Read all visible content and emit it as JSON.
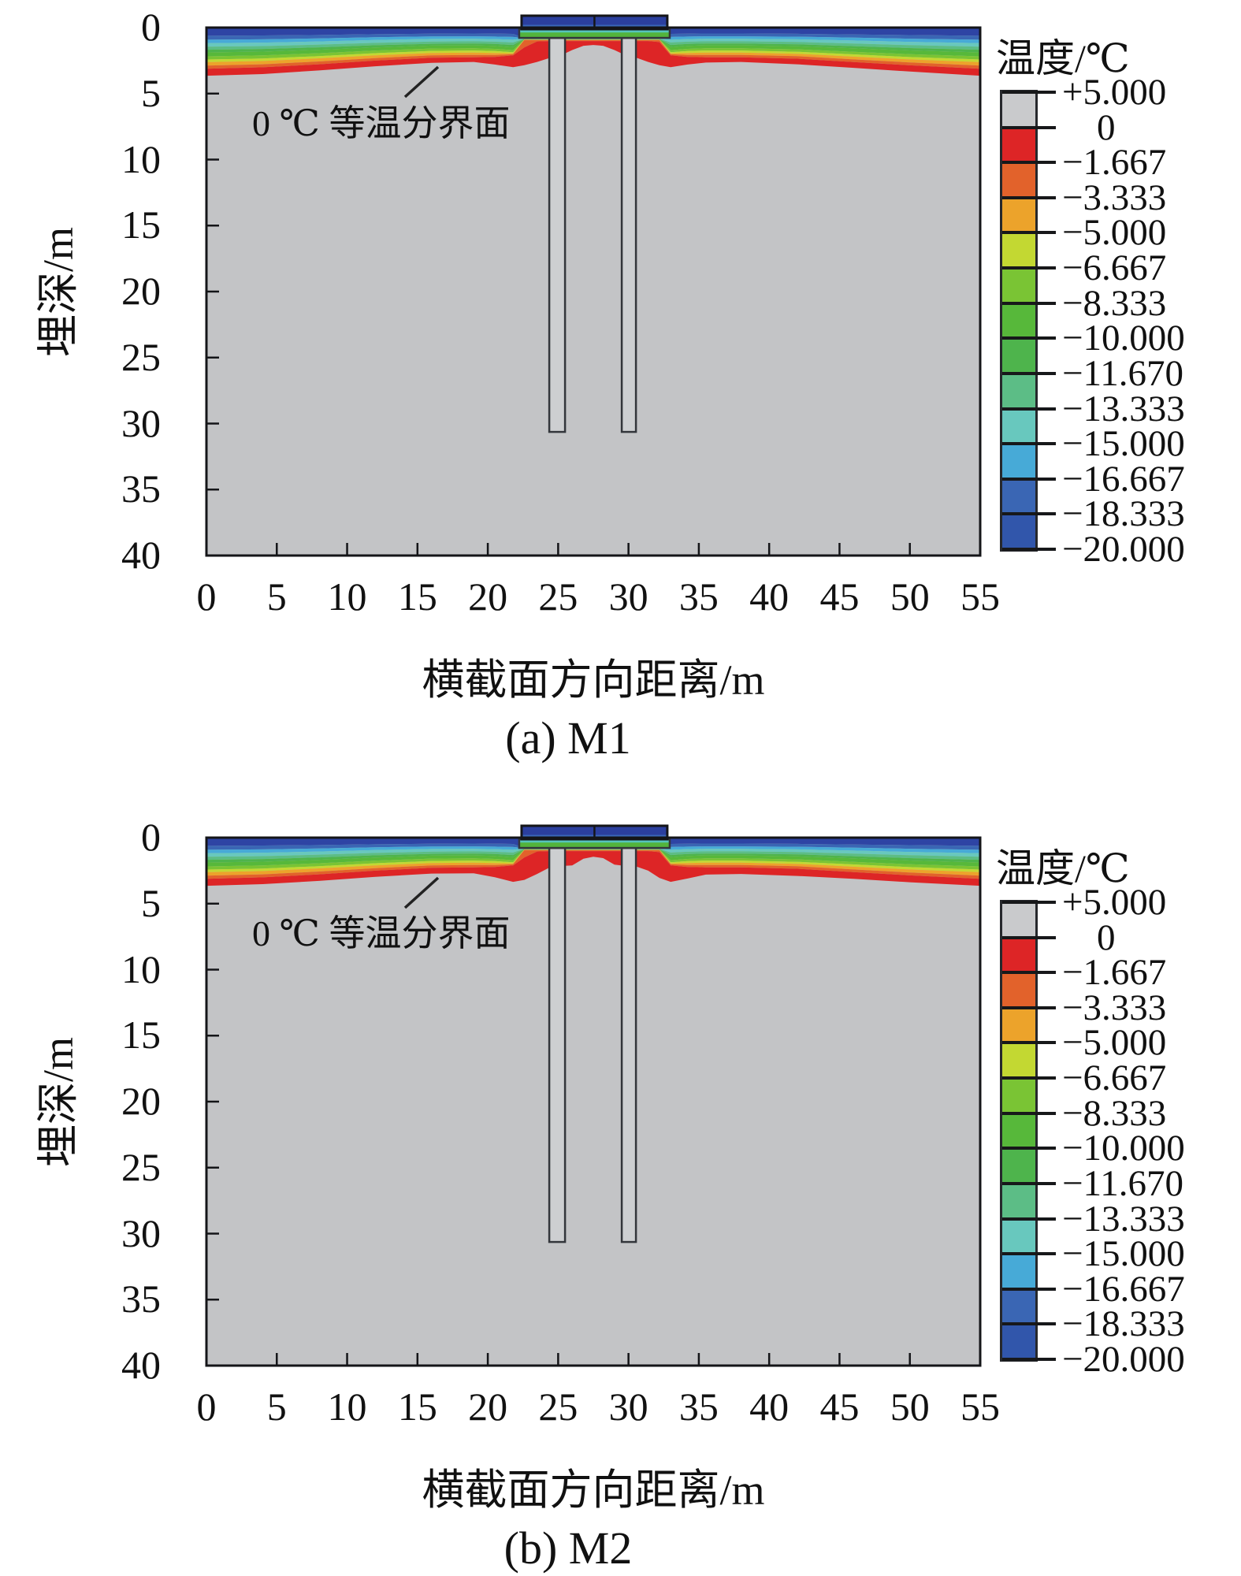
{
  "page": {
    "background": "#ffffff"
  },
  "axes": {
    "x_title": "横截面方向距离/m",
    "y_title": "埋深/m",
    "x_ticks": [
      "0",
      "5",
      "10",
      "15",
      "20",
      "25",
      "30",
      "35",
      "40",
      "45",
      "50",
      "55"
    ],
    "y_ticks": [
      "0",
      "5",
      "10",
      "15",
      "20",
      "25",
      "30",
      "35",
      "40"
    ],
    "x_range": [
      0,
      55
    ],
    "y_range": [
      0,
      40
    ]
  },
  "legend": {
    "title": "温度/℃",
    "tick_labels": [
      "+5.000",
      "0",
      "−1.667",
      "−3.333",
      "−5.000",
      "−6.667",
      "−8.333",
      "−10.000",
      "−11.670",
      "−13.333",
      "−15.000",
      "−16.667",
      "−18.333",
      "−20.000"
    ],
    "swatch_colors": [
      "#c9cacc",
      "#dd2526",
      "#e2622b",
      "#eca32b",
      "#c3d832",
      "#7ac434",
      "#57b83a",
      "#4eb44c",
      "#5cbd86",
      "#68c8be",
      "#47aad7",
      "#3a66b4",
      "#3156ab"
    ]
  },
  "chart_data": {
    "type": "heatmap",
    "title": "",
    "description": "Ground temperature contour cross-sections of a pile-supported embankment in permafrost; depth vs horizontal distance, 0°C isotherm annotated; two model cases M1 and M2.",
    "xlabel": "横截面方向距离/m",
    "ylabel": "埋深/m",
    "x_range_m": [
      0,
      55
    ],
    "depth_range_m": [
      0,
      40
    ],
    "grid": false,
    "legend_position": "right",
    "colors": {
      "body": "#c3c4c6",
      "pile_fill": "#cdcfd1",
      "outline": "#33363b",
      "surface_line": "#55565a",
      "border": "#141518",
      "leader_line": "#222222"
    },
    "band_colors": [
      "#2e44a4",
      "#3a66b4",
      "#47aad7",
      "#68c8be",
      "#5cbd86",
      "#4eb44c",
      "#57b83a",
      "#7ac434",
      "#c3d832",
      "#eca32b",
      "#e2622b",
      "#dd2526"
    ],
    "band_temps": [
      "−20.000 to −18.333",
      "−18.333 to −16.667",
      "−16.667 to −15.000",
      "−15.000 to −13.333",
      "−13.333 to −11.670",
      "−11.670 to −10.000",
      "−10.000 to −8.333",
      "−8.333 to −6.667",
      "−6.667 to −5.000",
      "−5.000 to −3.333",
      "−3.333 to −1.667",
      "−1.667 to 0"
    ],
    "below_isotherm": "0 to +5.000 (gray body)",
    "stations_m": [
      0,
      4,
      8,
      12,
      16,
      19,
      20.5,
      21.8,
      22.6,
      23.5,
      24.4,
      25.2,
      26,
      26.8,
      27.5,
      28.2,
      29,
      29.8,
      30.6,
      31.4,
      32.2,
      33,
      34.2,
      35.5,
      38,
      42,
      46,
      50,
      55
    ],
    "structure": {
      "embankment_box": {
        "x0": 22.4,
        "x1": 32.76,
        "top": -0.9,
        "bottom": 0.12,
        "fill": "#2b3f9e",
        "stripe": "#3a67b8",
        "divider_x": 27.58
      },
      "platform": {
        "x0": 22.23,
        "x1": 32.93,
        "top": 0.12,
        "bottom": 0.78,
        "fill": "#53b43c",
        "stripe": "#56c4bc"
      }
    },
    "piles": {
      "top_m": 0.78,
      "bottom_m": 30.63,
      "items": [
        {
          "x0": 24.37,
          "x1": 25.49
        },
        {
          "x0": 29.52,
          "x1": 30.53
        }
      ]
    },
    "panels": [
      {
        "caption": "(a) M1",
        "annotation": {
          "text": "0 ℃ 等温分界面",
          "leader": [
            252,
            108,
            294,
            70
          ]
        },
        "isotherm_boundaries": [
          [
            0,
            0,
            0,
            0,
            0,
            0,
            0,
            0,
            0,
            0,
            0,
            0,
            0,
            0,
            0,
            0,
            0,
            0,
            0,
            0,
            0,
            0,
            0,
            0,
            0,
            0,
            0,
            0,
            0
          ],
          [
            0.62,
            0.6,
            0.56,
            0.5,
            0.46,
            0.45,
            0.46,
            0.48,
            0.78,
            0.8,
            0.8,
            0.8,
            0.8,
            0.8,
            0.8,
            0.8,
            0.8,
            0.8,
            0.8,
            0.8,
            0.8,
            0.48,
            0.46,
            0.45,
            0.45,
            0.47,
            0.52,
            0.57,
            0.62
          ],
          [
            0.92,
            0.89,
            0.82,
            0.73,
            0.67,
            0.66,
            0.68,
            0.71,
            0.8,
            0.82,
            0.82,
            0.82,
            0.82,
            0.82,
            0.82,
            0.82,
            0.82,
            0.82,
            0.82,
            0.82,
            0.82,
            0.71,
            0.68,
            0.66,
            0.66,
            0.69,
            0.76,
            0.84,
            0.92
          ],
          [
            1.18,
            1.14,
            1.05,
            0.94,
            0.86,
            0.85,
            0.87,
            0.92,
            0.82,
            0.84,
            0.84,
            0.84,
            0.84,
            0.84,
            0.84,
            0.84,
            0.84,
            0.84,
            0.84,
            0.84,
            0.84,
            0.92,
            0.87,
            0.85,
            0.85,
            0.89,
            0.98,
            1.08,
            1.18
          ],
          [
            1.45,
            1.4,
            1.29,
            1.16,
            1.06,
            1.04,
            1.07,
            1.13,
            0.84,
            0.86,
            0.86,
            0.86,
            0.86,
            0.86,
            0.86,
            0.86,
            0.86,
            0.86,
            0.86,
            0.86,
            0.86,
            1.13,
            1.07,
            1.04,
            1.04,
            1.09,
            1.21,
            1.33,
            1.45
          ],
          [
            1.68,
            1.62,
            1.5,
            1.34,
            1.23,
            1.21,
            1.24,
            1.32,
            0.86,
            0.87,
            0.87,
            0.87,
            0.87,
            0.87,
            0.87,
            0.87,
            0.87,
            0.87,
            0.87,
            0.87,
            0.87,
            1.32,
            1.24,
            1.21,
            1.21,
            1.27,
            1.41,
            1.55,
            1.68
          ],
          [
            1.88,
            1.82,
            1.68,
            1.51,
            1.37,
            1.35,
            1.39,
            1.48,
            0.87,
            0.89,
            0.89,
            0.89,
            0.89,
            0.89,
            0.89,
            0.89,
            0.89,
            0.89,
            0.89,
            0.89,
            0.89,
            1.48,
            1.39,
            1.35,
            1.35,
            1.42,
            1.57,
            1.73,
            1.88
          ],
          [
            2.18,
            2.11,
            1.94,
            1.74,
            1.59,
            1.57,
            1.61,
            1.71,
            0.89,
            0.9,
            0.9,
            0.9,
            0.9,
            0.9,
            0.9,
            0.9,
            0.9,
            0.9,
            0.9,
            0.9,
            0.9,
            1.71,
            1.61,
            1.57,
            1.57,
            1.65,
            1.83,
            2.01,
            2.18
          ],
          [
            2.42,
            2.34,
            2.16,
            1.94,
            1.77,
            1.74,
            1.78,
            1.86,
            0.9,
            0.92,
            0.92,
            0.92,
            0.92,
            0.92,
            0.92,
            0.92,
            0.92,
            0.92,
            0.92,
            0.92,
            0.92,
            1.86,
            1.78,
            1.74,
            1.74,
            1.83,
            2.03,
            2.23,
            2.42
          ],
          [
            2.62,
            2.53,
            2.33,
            2.1,
            1.92,
            1.89,
            1.92,
            1.95,
            0.92,
            0.93,
            0.93,
            0.93,
            0.93,
            0.93,
            0.93,
            0.93,
            0.93,
            0.93,
            0.93,
            0.93,
            0.93,
            1.95,
            1.92,
            1.89,
            1.89,
            1.98,
            2.2,
            2.41,
            2.62
          ],
          [
            2.88,
            2.78,
            2.57,
            2.31,
            2.1,
            2.07,
            2.08,
            2.02,
            0.93,
            0.95,
            0.95,
            0.95,
            0.95,
            0.95,
            0.95,
            0.95,
            0.95,
            0.95,
            0.95,
            0.95,
            0.95,
            2.02,
            2.08,
            2.07,
            2.07,
            2.17,
            2.41,
            2.64,
            2.88
          ],
          [
            3.12,
            3.01,
            2.78,
            2.5,
            2.28,
            2.25,
            2.22,
            2.1,
            1.5,
            1.05,
            1.02,
            1.02,
            1.02,
            1.02,
            1.02,
            1.02,
            1.02,
            1.02,
            1.02,
            1.02,
            1.1,
            2.1,
            2.22,
            2.25,
            2.25,
            2.36,
            2.61,
            2.86,
            3.12
          ],
          [
            3.65,
            3.52,
            3.25,
            2.93,
            2.67,
            2.6,
            2.8,
            3.0,
            2.85,
            2.6,
            2.3,
            2.1,
            1.7,
            1.38,
            1.32,
            1.38,
            1.7,
            2.1,
            2.3,
            2.6,
            2.85,
            3.0,
            2.8,
            2.65,
            2.6,
            2.78,
            3.05,
            3.33,
            3.65
          ]
        ]
      },
      {
        "caption": "(b) M2",
        "annotation": {
          "text": "0 ℃ 等温分界面",
          "leader": [
            252,
            109,
            294,
            71
          ]
        },
        "isotherm_boundaries": [
          [
            0,
            0,
            0,
            0,
            0,
            0,
            0,
            0,
            0,
            0,
            0,
            0,
            0,
            0,
            0,
            0,
            0,
            0,
            0,
            0,
            0,
            0,
            0,
            0,
            0,
            0,
            0,
            0,
            0
          ],
          [
            0.62,
            0.6,
            0.56,
            0.5,
            0.46,
            0.45,
            0.46,
            0.48,
            0.78,
            0.8,
            0.8,
            0.8,
            0.8,
            0.8,
            0.8,
            0.8,
            0.8,
            0.8,
            0.8,
            0.8,
            0.8,
            0.48,
            0.46,
            0.45,
            0.45,
            0.47,
            0.52,
            0.57,
            0.62
          ],
          [
            0.92,
            0.89,
            0.82,
            0.73,
            0.67,
            0.66,
            0.68,
            0.71,
            0.8,
            0.82,
            0.82,
            0.82,
            0.82,
            0.82,
            0.82,
            0.82,
            0.82,
            0.82,
            0.82,
            0.82,
            0.82,
            0.71,
            0.68,
            0.66,
            0.66,
            0.69,
            0.76,
            0.84,
            0.92
          ],
          [
            1.18,
            1.14,
            1.05,
            0.94,
            0.86,
            0.85,
            0.87,
            0.92,
            0.82,
            0.84,
            0.84,
            0.84,
            0.84,
            0.84,
            0.84,
            0.84,
            0.84,
            0.84,
            0.84,
            0.84,
            0.84,
            0.92,
            0.87,
            0.85,
            0.85,
            0.89,
            0.98,
            1.08,
            1.18
          ],
          [
            1.45,
            1.4,
            1.29,
            1.16,
            1.06,
            1.04,
            1.07,
            1.13,
            0.84,
            0.86,
            0.86,
            0.86,
            0.86,
            0.86,
            0.86,
            0.86,
            0.86,
            0.86,
            0.86,
            0.86,
            0.86,
            1.13,
            1.07,
            1.04,
            1.04,
            1.09,
            1.21,
            1.33,
            1.45
          ],
          [
            1.68,
            1.62,
            1.5,
            1.34,
            1.23,
            1.21,
            1.24,
            1.32,
            0.86,
            0.87,
            0.87,
            0.87,
            0.87,
            0.87,
            0.87,
            0.87,
            0.87,
            0.87,
            0.87,
            0.87,
            0.87,
            1.32,
            1.24,
            1.21,
            1.21,
            1.27,
            1.41,
            1.55,
            1.68
          ],
          [
            1.88,
            1.82,
            1.68,
            1.51,
            1.37,
            1.35,
            1.39,
            1.48,
            0.87,
            0.89,
            0.89,
            0.89,
            0.89,
            0.89,
            0.89,
            0.89,
            0.89,
            0.89,
            0.89,
            0.89,
            0.89,
            1.48,
            1.39,
            1.35,
            1.35,
            1.42,
            1.57,
            1.73,
            1.88
          ],
          [
            2.18,
            2.11,
            1.94,
            1.74,
            1.59,
            1.57,
            1.61,
            1.71,
            0.89,
            0.9,
            0.9,
            0.9,
            0.9,
            0.9,
            0.9,
            0.9,
            0.9,
            0.9,
            0.9,
            0.9,
            0.9,
            1.71,
            1.61,
            1.57,
            1.57,
            1.65,
            1.83,
            2.01,
            2.18
          ],
          [
            2.42,
            2.34,
            2.16,
            1.94,
            1.77,
            1.74,
            1.78,
            1.86,
            0.9,
            0.92,
            0.92,
            0.92,
            0.92,
            0.92,
            0.92,
            0.92,
            0.92,
            0.92,
            0.92,
            0.92,
            0.92,
            1.86,
            1.78,
            1.74,
            1.74,
            1.83,
            2.03,
            2.23,
            2.42
          ],
          [
            2.62,
            2.53,
            2.33,
            2.1,
            1.92,
            1.89,
            1.92,
            1.95,
            0.92,
            0.93,
            0.93,
            0.93,
            0.93,
            0.93,
            0.93,
            0.93,
            0.93,
            0.93,
            0.93,
            0.93,
            0.93,
            1.95,
            1.92,
            1.89,
            1.89,
            1.98,
            2.2,
            2.41,
            2.62
          ],
          [
            2.88,
            2.78,
            2.57,
            2.31,
            2.1,
            2.07,
            2.08,
            2.02,
            0.93,
            0.95,
            0.95,
            0.95,
            0.95,
            0.95,
            0.95,
            0.95,
            0.95,
            0.95,
            0.95,
            0.95,
            0.95,
            2.02,
            2.08,
            2.07,
            2.07,
            2.17,
            2.41,
            2.64,
            2.88
          ],
          [
            3.12,
            3.01,
            2.78,
            2.5,
            2.28,
            2.25,
            2.22,
            2.1,
            1.5,
            1.05,
            1.02,
            1.02,
            1.02,
            1.02,
            1.02,
            1.02,
            1.02,
            1.02,
            1.02,
            1.02,
            1.1,
            2.1,
            2.22,
            2.25,
            2.25,
            2.36,
            2.61,
            2.86,
            3.12
          ],
          [
            3.65,
            3.52,
            3.28,
            2.97,
            2.72,
            2.7,
            3.0,
            3.35,
            3.2,
            2.75,
            2.25,
            2.15,
            2.1,
            1.6,
            1.45,
            1.55,
            2.05,
            2.15,
            2.2,
            2.5,
            3.05,
            3.35,
            3.1,
            2.8,
            2.75,
            2.9,
            3.12,
            3.38,
            3.65
          ]
        ]
      }
    ]
  }
}
